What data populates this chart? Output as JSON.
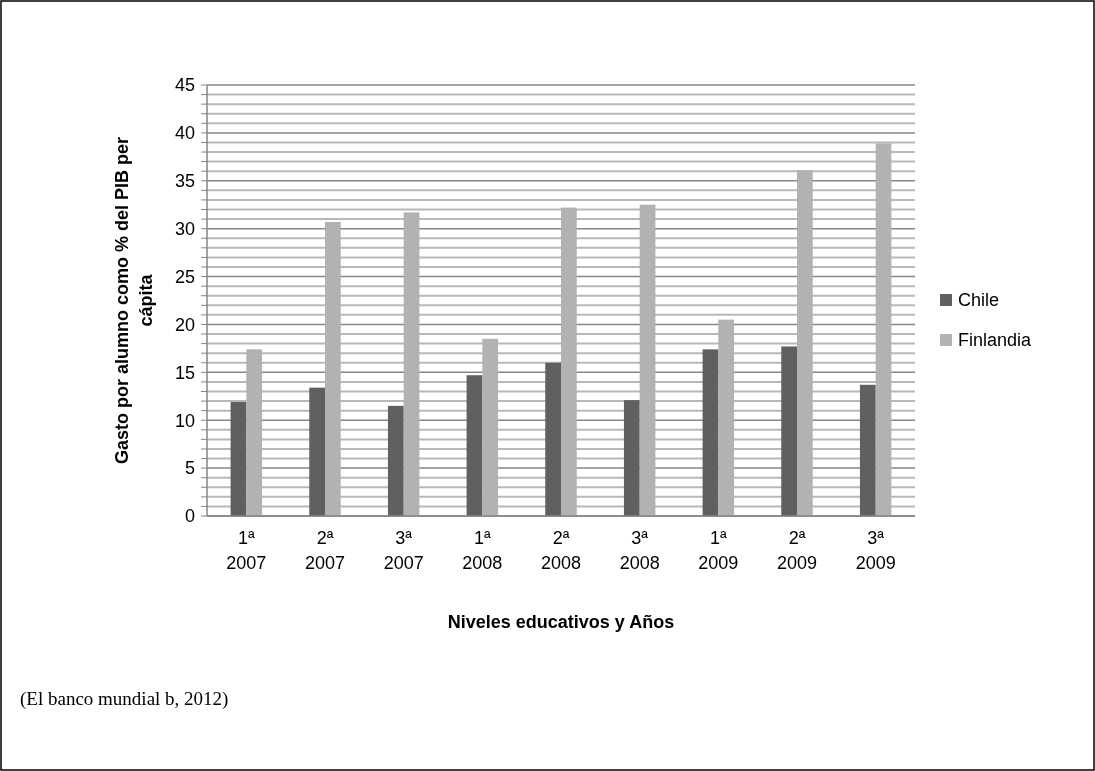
{
  "chart_data": {
    "type": "bar",
    "xlabel": "Niveles educativos y Años",
    "ylabel": "Gasto por alumno como % del PIB per cápita",
    "categories": [
      "1ª 2007",
      "2ª 2007",
      "3ª 2007",
      "1ª 2008",
      "2ª 2008",
      "3ª 2008",
      "1ª 2009",
      "2ª 2009",
      "3ª 2009"
    ],
    "series": [
      {
        "name": "Chile",
        "color": "#606060",
        "values": [
          11.9,
          13.4,
          11.5,
          14.7,
          16.0,
          12.1,
          17.4,
          17.7,
          13.7
        ]
      },
      {
        "name": "Finlandia",
        "color": "#b2b2b2",
        "values": [
          17.4,
          30.7,
          31.7,
          18.5,
          32.2,
          32.5,
          20.5,
          36.1,
          38.9
        ]
      }
    ],
    "ylim": [
      0,
      45
    ],
    "yticks": [
      0,
      {
        "value": 1,
        "label": null
      },
      {
        "value": 2,
        "label": null
      },
      {
        "value": 3,
        "label": null
      },
      {
        "value": 4,
        "label": null
      },
      5,
      {
        "value": 6,
        "label": null
      },
      {
        "value": 7,
        "label": null
      },
      {
        "value": 8,
        "label": null
      },
      {
        "value": 9,
        "label": null
      },
      10,
      {
        "value": 11,
        "label": null
      },
      {
        "value": 12,
        "label": null
      },
      {
        "value": 13,
        "label": null
      },
      {
        "value": 14,
        "label": null
      },
      15,
      {
        "value": 16,
        "label": null
      },
      {
        "value": 17,
        "label": null
      },
      {
        "value": 18,
        "label": null
      },
      {
        "value": 19,
        "label": null
      },
      20,
      {
        "value": 21,
        "label": null
      },
      {
        "value": 22,
        "label": null
      },
      {
        "value": 23,
        "label": null
      },
      {
        "value": 24,
        "label": null
      },
      25,
      {
        "value": 26,
        "label": null
      },
      {
        "value": 27,
        "label": null
      },
      {
        "value": 28,
        "label": null
      },
      {
        "value": 29,
        "label": null
      },
      30,
      {
        "value": 31,
        "label": null
      },
      {
        "value": 32,
        "label": null
      },
      {
        "value": 33,
        "label": null
      },
      {
        "value": 34,
        "label": null
      },
      35,
      {
        "value": 36,
        "label": null
      },
      {
        "value": 37,
        "label": null
      },
      {
        "value": 38,
        "label": null
      },
      {
        "value": 39,
        "label": null
      },
      40,
      {
        "value": 41,
        "label": null
      },
      {
        "value": 42,
        "label": null
      },
      {
        "value": 43,
        "label": null
      },
      {
        "value": 44,
        "label": null
      },
      45
    ],
    "grid": "y",
    "legend": "right",
    "annotations": [
      "(El banco mundial b, 2012)"
    ]
  }
}
